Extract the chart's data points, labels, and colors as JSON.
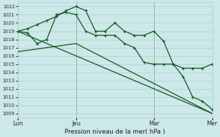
{
  "xlabel": "Pression niveau de la mer( hPa )",
  "ylim": [
    1008.5,
    1022.5
  ],
  "yticks": [
    1009,
    1010,
    1011,
    1012,
    1013,
    1014,
    1015,
    1016,
    1017,
    1018,
    1019,
    1020,
    1021,
    1022
  ],
  "xtick_labels": [
    "Lun",
    "Jeu",
    "Mar",
    "Mer"
  ],
  "xtick_positions": [
    0,
    3,
    7,
    10
  ],
  "bg_color": "#cce8e8",
  "grid_color": "#aad0d0",
  "line_color": "#1a5c28",
  "vline_color": "#3a7a4a",
  "line1_x": [
    0,
    0.5,
    1.0,
    1.5,
    2.0,
    2.5,
    3.0,
    3.5,
    4.0,
    4.5,
    5.0,
    5.5,
    6.0,
    6.5,
    7.0,
    7.5,
    8.0,
    8.5,
    9.0,
    9.5,
    10.0
  ],
  "line1_y": [
    1019.0,
    1019.3,
    1019.8,
    1020.3,
    1020.8,
    1021.5,
    1022.0,
    1021.5,
    1019.0,
    1019.0,
    1020.0,
    1019.0,
    1018.5,
    1018.5,
    1019.0,
    1017.8,
    1015.0,
    1014.5,
    1014.5,
    1014.5,
    1015.0
  ],
  "line2_x": [
    0,
    0.5,
    1.0,
    1.5,
    2.0,
    2.5,
    3.0,
    3.5,
    4.0,
    4.5,
    5.0,
    5.5,
    6.0,
    6.5,
    7.0,
    7.5,
    8.0,
    8.5,
    9.0,
    9.5,
    10.0
  ],
  "line2_y": [
    1019.0,
    1018.8,
    1017.5,
    1018.0,
    1021.0,
    1021.3,
    1021.0,
    1019.0,
    1018.5,
    1018.5,
    1018.5,
    1017.5,
    1017.0,
    1015.2,
    1015.0,
    1015.0,
    1015.0,
    1013.5,
    1011.0,
    1010.5,
    1009.5
  ],
  "line3_x": [
    0,
    10.0
  ],
  "line3_y": [
    1019.0,
    1009.0
  ],
  "line4_x": [
    0,
    3.0,
    10.0
  ],
  "line4_y": [
    1016.5,
    1017.5,
    1009.0
  ],
  "marker_style": "+",
  "marker_size": 3.5,
  "line_width": 1.0
}
